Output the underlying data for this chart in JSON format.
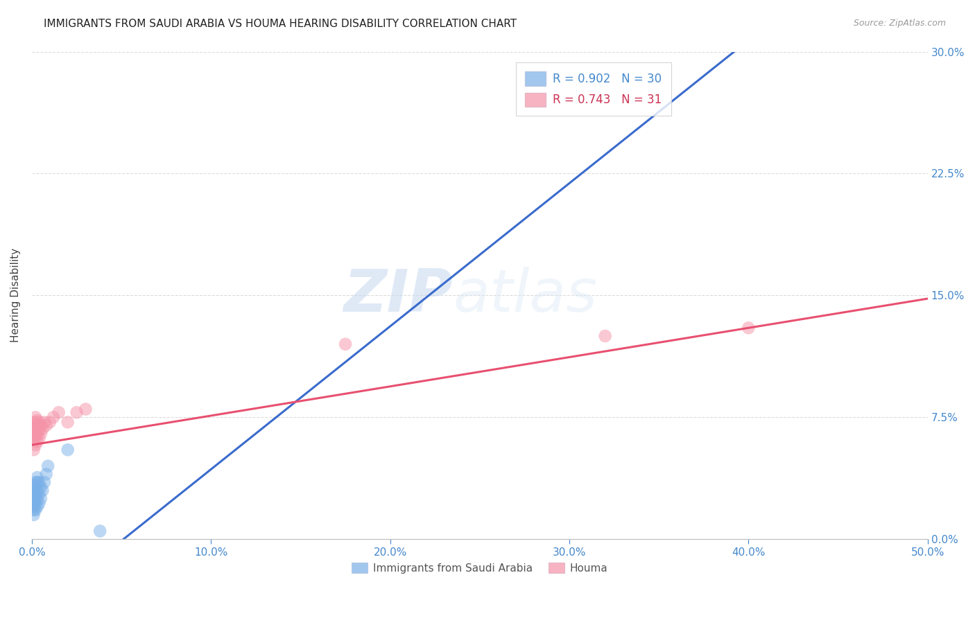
{
  "title": "IMMIGRANTS FROM SAUDI ARABIA VS HOUMA HEARING DISABILITY CORRELATION CHART",
  "source": "Source: ZipAtlas.com",
  "xlabel_blue": "Immigrants from Saudi Arabia",
  "xlabel_pink": "Houma",
  "ylabel": "Hearing Disability",
  "xlim": [
    0.0,
    0.5
  ],
  "ylim": [
    0.0,
    0.3
  ],
  "xticks": [
    0.0,
    0.1,
    0.2,
    0.3,
    0.4,
    0.5
  ],
  "xtick_labels": [
    "0.0%",
    "10.0%",
    "20.0%",
    "30.0%",
    "40.0%",
    "50.0%"
  ],
  "yticks": [
    0.0,
    0.075,
    0.15,
    0.225,
    0.3
  ],
  "ytick_labels": [
    "0.0%",
    "7.5%",
    "15.0%",
    "22.5%",
    "30.0%"
  ],
  "background_color": "#ffffff",
  "grid_color": "#cccccc",
  "blue_color": "#7ab0e8",
  "pink_color": "#f593a8",
  "blue_line_color": "#3a6bcc",
  "pink_line_color": "#e85070",
  "legend_R_blue": "0.902",
  "legend_N_blue": "30",
  "legend_R_pink": "0.743",
  "legend_N_pink": "31",
  "blue_scatter_x": [
    0.001,
    0.001,
    0.001,
    0.001,
    0.001,
    0.001,
    0.001,
    0.001,
    0.002,
    0.002,
    0.002,
    0.002,
    0.002,
    0.002,
    0.003,
    0.003,
    0.003,
    0.003,
    0.003,
    0.004,
    0.004,
    0.004,
    0.005,
    0.005,
    0.006,
    0.007,
    0.008,
    0.009,
    0.02,
    0.038
  ],
  "blue_scatter_y": [
    0.015,
    0.018,
    0.02,
    0.022,
    0.025,
    0.028,
    0.03,
    0.033,
    0.018,
    0.022,
    0.025,
    0.028,
    0.032,
    0.035,
    0.02,
    0.025,
    0.03,
    0.035,
    0.038,
    0.022,
    0.028,
    0.035,
    0.025,
    0.032,
    0.03,
    0.035,
    0.04,
    0.045,
    0.055,
    0.005
  ],
  "pink_scatter_x": [
    0.001,
    0.001,
    0.001,
    0.001,
    0.001,
    0.002,
    0.002,
    0.002,
    0.002,
    0.002,
    0.003,
    0.003,
    0.003,
    0.003,
    0.004,
    0.004,
    0.004,
    0.005,
    0.005,
    0.006,
    0.007,
    0.008,
    0.01,
    0.012,
    0.015,
    0.02,
    0.025,
    0.03,
    0.175,
    0.32,
    0.4
  ],
  "pink_scatter_y": [
    0.055,
    0.062,
    0.065,
    0.068,
    0.072,
    0.058,
    0.063,
    0.067,
    0.07,
    0.075,
    0.06,
    0.065,
    0.07,
    0.073,
    0.062,
    0.067,
    0.072,
    0.065,
    0.07,
    0.068,
    0.072,
    0.07,
    0.072,
    0.075,
    0.078,
    0.072,
    0.078,
    0.08,
    0.12,
    0.125,
    0.13
  ],
  "blue_line_x": [
    0.0,
    0.5
  ],
  "blue_line_y": [
    -0.045,
    0.395
  ],
  "pink_line_x": [
    0.0,
    0.5
  ],
  "pink_line_y": [
    0.058,
    0.148
  ]
}
